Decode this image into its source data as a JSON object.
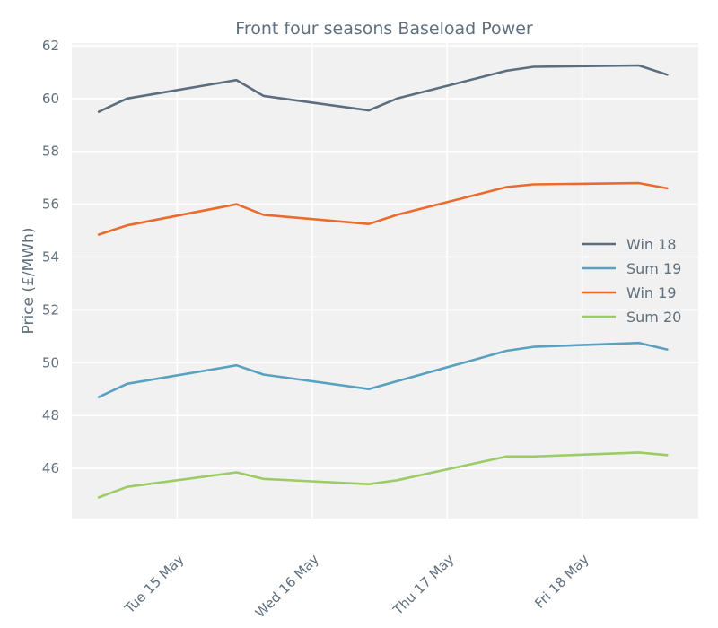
{
  "chart_data": {
    "type": "line",
    "title": "Front four seasons Baseload Power",
    "xlabel": "",
    "ylabel": "Price (£/MWh)",
    "x_ticks": [
      "Tue 15 May",
      "Wed 16 May",
      "Thu 17 May",
      "Fri 18 May"
    ],
    "x_tick_values": [
      15,
      16,
      17,
      18
    ],
    "xlim": [
      14.22,
      18.86
    ],
    "ylim": [
      44.1,
      62.1
    ],
    "y_ticks": [
      46,
      48,
      50,
      52,
      54,
      56,
      58,
      60,
      62
    ],
    "x": [
      14.42,
      14.63,
      15.44,
      15.64,
      16.42,
      16.63,
      17.44,
      17.64,
      18.42,
      18.63
    ],
    "legend_position": "center-right",
    "grid": true,
    "series": [
      {
        "name": "Win 18",
        "color": "#5c6e7e",
        "values": [
          59.5,
          60.0,
          60.7,
          60.1,
          59.55,
          60.0,
          61.05,
          61.2,
          61.25,
          60.9
        ]
      },
      {
        "name": "Sum 19",
        "color": "#5aa0c0",
        "values": [
          48.7,
          49.2,
          49.9,
          49.55,
          49.0,
          49.3,
          50.45,
          50.6,
          50.75,
          50.5
        ]
      },
      {
        "name": "Win 19",
        "color": "#eb6a2d",
        "values": [
          54.85,
          55.2,
          56.0,
          55.6,
          55.25,
          55.6,
          56.65,
          56.75,
          56.8,
          56.6
        ]
      },
      {
        "name": "Sum 20",
        "color": "#9ccc65",
        "values": [
          44.9,
          45.3,
          45.85,
          45.6,
          45.4,
          45.55,
          46.45,
          46.45,
          46.6,
          46.5
        ]
      }
    ]
  }
}
